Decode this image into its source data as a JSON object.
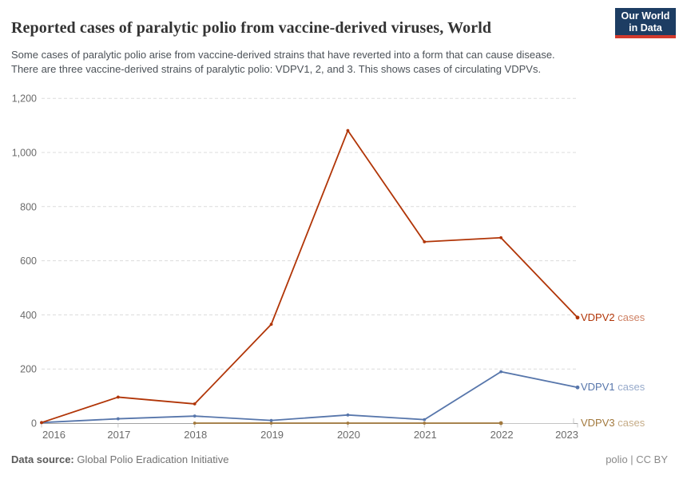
{
  "header": {
    "title": "Reported cases of paralytic polio from vaccine-derived viruses, World",
    "subtitle": "Some cases of paralytic polio arise from vaccine-derived strains that have reverted into a form that can cause disease. There are three vaccine-derived strains of paralytic polio: VDPV1, 2, and 3. This shows cases of circulating VDPVs.",
    "logo": {
      "line1": "Our World",
      "line2": "in Data",
      "bg_color": "#1d3d63",
      "bar_color": "#d23a2d"
    }
  },
  "chart_data": {
    "type": "line",
    "title": "Reported cases of paralytic polio from vaccine-derived viruses, World",
    "xlabel": "",
    "ylabel": "",
    "ylim": [
      0,
      1200
    ],
    "xlim": [
      2016,
      2023
    ],
    "grid": "horizontal-dashed",
    "legend_position": "right-end-labels",
    "x_ticks": [
      2016,
      2017,
      2018,
      2019,
      2020,
      2021,
      2022,
      2023
    ],
    "y_ticks": [
      0,
      200,
      400,
      600,
      800,
      1000,
      1200
    ],
    "y_tick_labels": [
      "0",
      "200",
      "400",
      "600",
      "800",
      "1,000",
      "1,200"
    ],
    "series": [
      {
        "name": "VDPV2 cases",
        "label": "VDPV2",
        "label_suffix": "cases",
        "color": "#b13507",
        "x": [
          2016,
          2017,
          2018,
          2019,
          2020,
          2021,
          2022,
          2023
        ],
        "values": [
          2,
          96,
          71,
          365,
          1081,
          670,
          685,
          390
        ]
      },
      {
        "name": "VDPV1 cases",
        "label": "VDPV1",
        "label_suffix": "cases",
        "color": "#5776ab",
        "x": [
          2016,
          2017,
          2018,
          2019,
          2020,
          2021,
          2022,
          2023
        ],
        "values": [
          2,
          16,
          26,
          10,
          30,
          13,
          190,
          132
        ]
      },
      {
        "name": "VDPV3 cases",
        "label": "VDPV3",
        "label_suffix": "cases",
        "color": "#a2793d",
        "x": [
          2018,
          2019,
          2020,
          2021,
          2022
        ],
        "values": [
          0,
          0,
          0,
          0,
          0
        ]
      }
    ],
    "axis_color": "#a3a3a3",
    "grid_color": "#dcdcdc",
    "tick_color": "#c9c9c9",
    "connector_color": "#c4c4c4",
    "tick_label_color": "#6b6b6b"
  },
  "footer": {
    "source_label": "Data source:",
    "source_value": "Global Polio Eradication Initiative",
    "license": "polio | CC BY"
  }
}
